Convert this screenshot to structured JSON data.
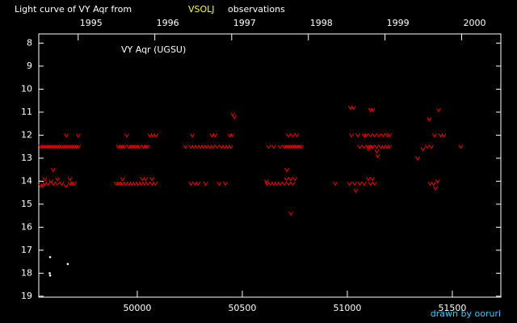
{
  "chart_data": {
    "type": "scatter",
    "title": "Light curve of VY Aqr from",
    "title_source": "VSOLJ",
    "title_suffix": "observations",
    "annotation": "VY Aqr (UGSU)",
    "credit": "drawn by ooruri",
    "xlim": [
      49531,
      51731
    ],
    "xticks": [
      50000,
      50500,
      51000,
      51500
    ],
    "x2ticks": [
      {
        "value": 49718.5,
        "label": "1995"
      },
      {
        "value": 50083.5,
        "label": "1996"
      },
      {
        "value": 50449.5,
        "label": "1997"
      },
      {
        "value": 50814.5,
        "label": "1998"
      },
      {
        "value": 51179.5,
        "label": "1999"
      },
      {
        "value": 51544.5,
        "label": "2000"
      }
    ],
    "ylim": [
      7.6,
      19.04
    ],
    "y_inverted": true,
    "yticks": [
      8,
      9,
      10,
      11,
      12,
      13,
      14,
      15,
      16,
      17,
      18,
      19
    ],
    "series": [
      {
        "color": "#ff0000",
        "marker": "v",
        "x": [
          49540,
          49548,
          49556,
          49564,
          49572,
          49580,
          49588,
          49596,
          49604,
          49612,
          49620,
          49628,
          49640,
          49650,
          49660,
          49670,
          49680,
          49690,
          49700,
          49710,
          49720,
          49540,
          49550,
          49560,
          49575,
          49590,
          49600,
          49620,
          49640,
          49660,
          49680,
          49690,
          49700,
          49600,
          49560,
          49620,
          49680,
          49662,
          49719,
          49910,
          49920,
          49930,
          49940,
          49960,
          49970,
          49980,
          49990,
          50000,
          50010,
          50030,
          50040,
          50050,
          49900,
          49910,
          49920,
          49930,
          49945,
          49960,
          49975,
          49990,
          50005,
          50020,
          50035,
          50050,
          50070,
          50085,
          49950,
          50060,
          50075,
          50090,
          49930,
          50025,
          50070,
          50040,
          50230,
          50255,
          50270,
          50285,
          50300,
          50315,
          50330,
          50345,
          50360,
          50380,
          50400,
          50415,
          50430,
          50445,
          50255,
          50275,
          50290,
          50325,
          50390,
          50420,
          50262,
          50355,
          50370,
          50440,
          50452,
          50455,
          50463,
          50625,
          50650,
          50680,
          50700,
          50710,
          50720,
          50730,
          50740,
          50750,
          50760,
          50770,
          50780,
          50618,
          50635,
          50650,
          50665,
          50680,
          50700,
          50720,
          50740,
          50710,
          50730,
          50750,
          50720,
          50740,
          50760,
          50712,
          50731,
          50615,
          50943,
          51020,
          51050,
          51080,
          51090,
          51110,
          51130,
          51150,
          51170,
          51190,
          51200,
          51060,
          51080,
          51100,
          51110,
          51120,
          51140,
          51160,
          51175,
          51190,
          51200,
          51015,
          51030,
          51110,
          51120,
          51010,
          51035,
          51060,
          51080,
          51110,
          51130,
          51040,
          51100,
          51120,
          51140,
          51145,
          51100,
          51335,
          51360,
          51380,
          51390,
          51400,
          51395,
          51420,
          51410,
          51430,
          51415,
          51445,
          51460,
          51435,
          51540
        ],
        "values": [
          12.5,
          12.5,
          12.5,
          12.5,
          12.5,
          12.5,
          12.5,
          12.5,
          12.5,
          12.5,
          12.5,
          12.5,
          12.5,
          12.5,
          12.5,
          12.5,
          12.5,
          12.5,
          12.5,
          12.5,
          12.5,
          14.2,
          14.2,
          14.1,
          14.1,
          14.0,
          14.1,
          14.1,
          14.1,
          14.2,
          14.1,
          14.1,
          14.1,
          13.5,
          13.9,
          13.9,
          13.9,
          12.0,
          12.0,
          12.5,
          12.5,
          12.5,
          12.5,
          12.5,
          12.5,
          12.5,
          12.5,
          12.5,
          12.5,
          12.5,
          12.5,
          12.5,
          14.1,
          14.1,
          14.1,
          14.1,
          14.1,
          14.1,
          14.1,
          14.1,
          14.1,
          14.1,
          14.1,
          14.1,
          14.1,
          14.1,
          12.0,
          12.0,
          12.0,
          12.0,
          13.9,
          13.9,
          13.9,
          13.9,
          12.5,
          12.5,
          12.5,
          12.5,
          12.5,
          12.5,
          12.5,
          12.5,
          12.5,
          12.5,
          12.5,
          12.5,
          12.5,
          12.5,
          14.1,
          14.1,
          14.1,
          14.1,
          14.1,
          14.1,
          12.0,
          12.0,
          12.0,
          12.0,
          12.0,
          11.1,
          11.2,
          12.5,
          12.5,
          12.5,
          12.5,
          12.5,
          12.5,
          12.5,
          12.5,
          12.5,
          12.5,
          12.5,
          12.5,
          14.1,
          14.1,
          14.1,
          14.1,
          14.1,
          14.1,
          14.1,
          14.1,
          13.9,
          13.9,
          13.9,
          12.0,
          12.0,
          12.0,
          13.5,
          15.4,
          14.0,
          14.1,
          12.0,
          12.0,
          12.0,
          12.0,
          12.0,
          12.0,
          12.0,
          12.0,
          12.0,
          12.0,
          12.5,
          12.5,
          12.5,
          12.5,
          12.5,
          12.5,
          12.5,
          12.5,
          12.5,
          12.5,
          10.8,
          10.8,
          10.9,
          10.9,
          14.1,
          14.1,
          14.1,
          14.1,
          14.1,
          14.1,
          14.4,
          13.9,
          13.9,
          12.7,
          12.9,
          12.6,
          13.0,
          12.6,
          12.5,
          11.3,
          12.5,
          14.1,
          14.3,
          14.1,
          14.0,
          12.0,
          12.0,
          12.0,
          10.9,
          12.5
        ]
      },
      {
        "color": "#ffffff",
        "marker": "dot",
        "x": [
          49585,
          49585,
          49669,
          49583
        ],
        "values": [
          17.3,
          18.1,
          17.6,
          18.0
        ]
      }
    ]
  }
}
